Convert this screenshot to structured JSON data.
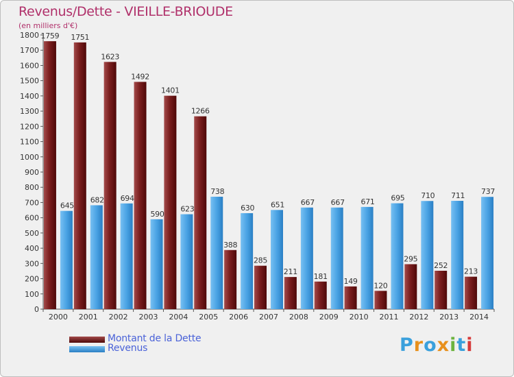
{
  "chart_data": {
    "type": "bar",
    "title": "Revenus/Dette - VIEILLE-BRIOUDE",
    "subtitle": "(en milliers d'€)",
    "xlabel": "",
    "ylabel": "",
    "ylim": [
      0,
      1800
    ],
    "yticks": [
      0,
      100,
      200,
      300,
      400,
      500,
      600,
      700,
      800,
      900,
      1000,
      1100,
      1200,
      1300,
      1400,
      1500,
      1600,
      1700,
      1800
    ],
    "categories": [
      "2000",
      "2001",
      "2002",
      "2003",
      "2004",
      "2005",
      "2006",
      "2007",
      "2008",
      "2009",
      "2010",
      "2011",
      "2012",
      "2013",
      "2014"
    ],
    "series": [
      {
        "name": "Montant de la Dette",
        "color": "#7a1e1e",
        "values": [
          1759,
          1751,
          1623,
          1492,
          1401,
          1266,
          388,
          285,
          211,
          181,
          149,
          120,
          295,
          252,
          213
        ]
      },
      {
        "name": "Revenus",
        "color": "#4aa3e4",
        "values": [
          645,
          682,
          694,
          590,
          623,
          738,
          630,
          651,
          667,
          667,
          671,
          695,
          710,
          711,
          737
        ]
      }
    ],
    "grid": false,
    "legend_position": "bottom-left"
  },
  "brand": {
    "letters": [
      "P",
      "r",
      "o",
      "x",
      "i",
      "t",
      "i"
    ],
    "colors": [
      "#3aa0dc",
      "#e8901c",
      "#3aa0dc",
      "#e8901c",
      "#6cb33f",
      "#3aa0dc",
      "#d63a3a"
    ]
  }
}
